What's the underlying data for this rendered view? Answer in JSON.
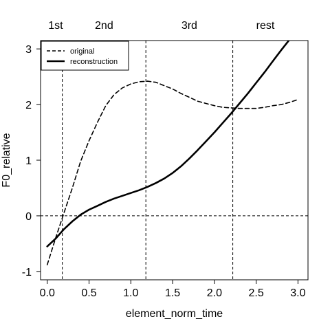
{
  "chart_data": {
    "type": "line",
    "xlabel": "element_norm_time",
    "ylabel": "F0_relative",
    "xlim": [
      -0.08,
      3.12
    ],
    "ylim": [
      -1.15,
      3.15
    ],
    "x_ticks": [
      0.0,
      0.5,
      1.0,
      1.5,
      2.0,
      2.5,
      3.0
    ],
    "x_tick_labels": [
      "0.0",
      "0.5",
      "1.0",
      "1.5",
      "2.0",
      "2.5",
      "3.0"
    ],
    "y_ticks": [
      -1,
      0,
      1,
      2,
      3
    ],
    "y_tick_labels": [
      "-1",
      "0",
      "1",
      "2",
      "3"
    ],
    "segment_boundaries": [
      0.18,
      1.18,
      2.22
    ],
    "segment_labels": [
      {
        "x": 0.1,
        "label": "1st"
      },
      {
        "x": 0.68,
        "label": "2nd"
      },
      {
        "x": 1.7,
        "label": "3rd"
      },
      {
        "x": 2.61,
        "label": "rest"
      }
    ],
    "reference_line_y": 0,
    "legend": {
      "position": "top-left",
      "entries": [
        {
          "label": "original",
          "style": "dashed"
        },
        {
          "label": "reconstruction",
          "style": "solid"
        }
      ]
    },
    "series": [
      {
        "name": "original",
        "style": "dashed",
        "x": [
          0.0,
          0.1,
          0.2,
          0.3,
          0.4,
          0.5,
          0.6,
          0.7,
          0.8,
          0.9,
          1.0,
          1.1,
          1.2,
          1.3,
          1.4,
          1.5,
          1.6,
          1.7,
          1.8,
          1.9,
          2.0,
          2.1,
          2.2,
          2.3,
          2.4,
          2.5,
          2.6,
          2.7,
          2.8,
          2.9,
          3.0
        ],
        "y": [
          -0.88,
          -0.4,
          0.05,
          0.5,
          0.98,
          1.35,
          1.68,
          1.98,
          2.18,
          2.3,
          2.37,
          2.41,
          2.42,
          2.4,
          2.34,
          2.28,
          2.2,
          2.13,
          2.06,
          2.02,
          1.98,
          1.95,
          1.94,
          1.93,
          1.93,
          1.93,
          1.95,
          1.98,
          2.0,
          2.04,
          2.09
        ]
      },
      {
        "name": "reconstruction",
        "style": "solid",
        "x": [
          0.0,
          0.1,
          0.2,
          0.3,
          0.4,
          0.5,
          0.6,
          0.7,
          0.8,
          0.9,
          1.0,
          1.1,
          1.2,
          1.3,
          1.4,
          1.5,
          1.6,
          1.7,
          1.8,
          1.9,
          2.0,
          2.1,
          2.2,
          2.3,
          2.4,
          2.5,
          2.6,
          2.7,
          2.8,
          2.9
        ],
        "y": [
          -0.55,
          -0.41,
          -0.24,
          -0.1,
          0.02,
          0.11,
          0.18,
          0.25,
          0.31,
          0.36,
          0.41,
          0.46,
          0.52,
          0.59,
          0.67,
          0.77,
          0.89,
          1.03,
          1.18,
          1.34,
          1.5,
          1.67,
          1.84,
          2.02,
          2.2,
          2.39,
          2.58,
          2.78,
          2.98,
          3.17
        ]
      }
    ]
  }
}
